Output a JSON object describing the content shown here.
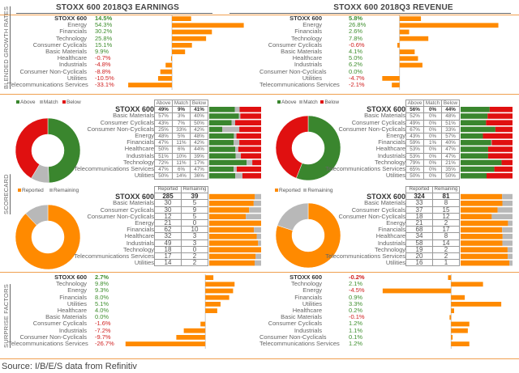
{
  "sections": {
    "growth": "BLENDED GROWTH RATES",
    "scorecard": "SCORECARD",
    "surprise": "SURPRISE FACTORS"
  },
  "source": "Source: I/B/E/S data from Refinitiv",
  "colors": {
    "bar": "#ff8a00",
    "above": "#3a862e",
    "match": "#b8b8b8",
    "below": "#e01010",
    "reported": "#ff8a00",
    "remaining": "#b8b8b8",
    "positive_text": "#3f8f2f",
    "negative_text": "#d02020"
  },
  "legends": {
    "above": "Above",
    "match": "Match",
    "below": "Below",
    "reported": "Reported",
    "remaining": "Remaining"
  },
  "table_headers": {
    "above": "Above",
    "match": "Match",
    "below": "Below",
    "reported": "Reported",
    "remaining": "Remaining"
  },
  "chart_data": [
    {
      "id": "earnings_growth",
      "type": "bar",
      "orientation": "horizontal",
      "title": "STOXX 600 2018Q3 EARNINGS",
      "categories": [
        "STOXX 600",
        "Energy",
        "Financials",
        "Technology",
        "Consumer Cyclicals",
        "Basic Materials",
        "Healthcare",
        "Industrials",
        "Consumer Non-Cyclicals",
        "Utilities",
        "Telecommunications Services"
      ],
      "values": [
        14.5,
        54.3,
        30.2,
        25.8,
        15.1,
        9.9,
        -0.7,
        -4.8,
        -8.8,
        -10.5,
        -33.1
      ],
      "labels": [
        "14.5%",
        "54.3%",
        "30.2%",
        "25.8%",
        "15.1%",
        "9.9%",
        "-0.7%",
        "-4.8%",
        "-8.8%",
        "-10.5%",
        "-33.1%"
      ],
      "xlim": [
        -35,
        57
      ],
      "unit": "%"
    },
    {
      "id": "revenue_growth",
      "type": "bar",
      "orientation": "horizontal",
      "title": "STOXX 600 2018Q3 REVENUE",
      "categories": [
        "STOXX 600",
        "Energy",
        "Financials",
        "Technology",
        "Consumer Cyclicals",
        "Basic Materials",
        "Healthcare",
        "Industrials",
        "Consumer Non-Cyclicals",
        "Utilities",
        "Telecommunications Services"
      ],
      "values": [
        5.8,
        26.8,
        2.6,
        7.8,
        -0.6,
        4.1,
        5.0,
        6.2,
        0.0,
        -4.7,
        -2.1
      ],
      "labels": [
        "5.8%",
        "26.8%",
        "2.6%",
        "7.8%",
        "-0.6%",
        "4.1%",
        "5.0%",
        "6.2%",
        "0.0%",
        "-4.7%",
        "-2.1%"
      ],
      "xlim": [
        -5,
        28
      ],
      "unit": "%"
    },
    {
      "id": "earnings_scorecard_pie",
      "type": "pie",
      "style": "donut",
      "categories": [
        "Above",
        "Match",
        "Below"
      ],
      "values": [
        49,
        9,
        41
      ]
    },
    {
      "id": "earnings_scorecard_table",
      "type": "table",
      "columns": [
        "Above",
        "Match",
        "Below"
      ],
      "rows": [
        {
          "name": "STOXX 600",
          "above": 49,
          "match": 9,
          "below": 41
        },
        {
          "name": "Basic Materials",
          "above": 57,
          "match": 3,
          "below": 40
        },
        {
          "name": "Consumer Cyclicals",
          "above": 43,
          "match": 7,
          "below": 50
        },
        {
          "name": "Consumer Non-Cyclicals",
          "above": 25,
          "match": 33,
          "below": 42
        },
        {
          "name": "Energy",
          "above": 48,
          "match": 5,
          "below": 48
        },
        {
          "name": "Financials",
          "above": 47,
          "match": 11,
          "below": 42
        },
        {
          "name": "Healthcare",
          "above": 50,
          "match": 6,
          "below": 44
        },
        {
          "name": "Industrials",
          "above": 51,
          "match": 10,
          "below": 39
        },
        {
          "name": "Technology",
          "above": 72,
          "match": 11,
          "below": 17
        },
        {
          "name": "Telecommunications Services",
          "above": 47,
          "match": 6,
          "below": 47
        },
        {
          "name": "Utilities",
          "above": 50,
          "match": 14,
          "below": 36
        }
      ],
      "unit": "%"
    },
    {
      "id": "revenue_scorecard_pie",
      "type": "pie",
      "style": "donut",
      "categories": [
        "Above",
        "Match",
        "Below"
      ],
      "values": [
        56,
        0,
        44
      ]
    },
    {
      "id": "revenue_scorecard_table",
      "type": "table",
      "columns": [
        "Above",
        "Match",
        "Below"
      ],
      "rows": [
        {
          "name": "STOXX 600",
          "above": 56,
          "match": 0,
          "below": 44
        },
        {
          "name": "Basic Materials",
          "above": 52,
          "match": 0,
          "below": 48
        },
        {
          "name": "Consumer Cyclicals",
          "above": 49,
          "match": 0,
          "below": 51
        },
        {
          "name": "Consumer Non-Cyclicals",
          "above": 67,
          "match": 0,
          "below": 33
        },
        {
          "name": "Energy",
          "above": 43,
          "match": 0,
          "below": 57
        },
        {
          "name": "Financials",
          "above": 59,
          "match": 1,
          "below": 40
        },
        {
          "name": "Healthcare",
          "above": 53,
          "match": 0,
          "below": 47
        },
        {
          "name": "Industrials",
          "above": 53,
          "match": 0,
          "below": 47
        },
        {
          "name": "Technology",
          "above": 79,
          "match": 0,
          "below": 21
        },
        {
          "name": "Telecommunications Services",
          "above": 65,
          "match": 0,
          "below": 35
        },
        {
          "name": "Utilities",
          "above": 50,
          "match": 0,
          "below": 50
        }
      ],
      "unit": "%"
    },
    {
      "id": "earnings_reported_pie",
      "type": "pie",
      "style": "donut",
      "categories": [
        "Reported",
        "Remaining"
      ],
      "values": [
        285,
        39
      ]
    },
    {
      "id": "earnings_reported_table",
      "type": "table",
      "columns": [
        "Reported",
        "Remaining"
      ],
      "rows": [
        {
          "name": "STOXX 600",
          "reported": 285,
          "remaining": 39
        },
        {
          "name": "Basic Materials",
          "reported": 30,
          "remaining": 5
        },
        {
          "name": "Consumer Cyclicals",
          "reported": 30,
          "remaining": 9
        },
        {
          "name": "Consumer Non-Cyclicals",
          "reported": 12,
          "remaining": 5
        },
        {
          "name": "Energy",
          "reported": 21,
          "remaining": 0
        },
        {
          "name": "Financials",
          "reported": 62,
          "remaining": 10
        },
        {
          "name": "Healthcare",
          "reported": 32,
          "remaining": 3
        },
        {
          "name": "Industrials",
          "reported": 49,
          "remaining": 3
        },
        {
          "name": "Technology",
          "reported": 18,
          "remaining": 0
        },
        {
          "name": "Telecommunications Services",
          "reported": 17,
          "remaining": 2
        },
        {
          "name": "Utilities",
          "reported": 14,
          "remaining": 2
        }
      ]
    },
    {
      "id": "revenue_reported_pie",
      "type": "pie",
      "style": "donut",
      "categories": [
        "Reported",
        "Remaining"
      ],
      "values": [
        324,
        81
      ]
    },
    {
      "id": "revenue_reported_table",
      "type": "table",
      "columns": [
        "Reported",
        "Remaining"
      ],
      "rows": [
        {
          "name": "STOXX 600",
          "reported": 324,
          "remaining": 81
        },
        {
          "name": "Basic Materials",
          "reported": 33,
          "remaining": 8
        },
        {
          "name": "Consumer Cyclicals",
          "reported": 37,
          "remaining": 15
        },
        {
          "name": "Consumer Non-Cyclicals",
          "reported": 18,
          "remaining": 12
        },
        {
          "name": "Energy",
          "reported": 21,
          "remaining": 2
        },
        {
          "name": "Financials",
          "reported": 68,
          "remaining": 17
        },
        {
          "name": "Healthcare",
          "reported": 34,
          "remaining": 8
        },
        {
          "name": "Industrials",
          "reported": 58,
          "remaining": 14
        },
        {
          "name": "Technology",
          "reported": 19,
          "remaining": 2
        },
        {
          "name": "Telecommunications Services",
          "reported": 20,
          "remaining": 2
        },
        {
          "name": "Utilities",
          "reported": 16,
          "remaining": 1
        }
      ]
    },
    {
      "id": "earnings_surprise",
      "type": "bar",
      "orientation": "horizontal",
      "categories": [
        "STOXX 600",
        "Technology",
        "Energy",
        "Financials",
        "Utilities",
        "Healthcare",
        "Basic Materials",
        "Consumer Cyclicals",
        "Industrials",
        "Consumer Non-Cyclicals",
        "Telecommunications Services"
      ],
      "values": [
        2.7,
        9.8,
        9.3,
        8.0,
        5.1,
        4.0,
        0.0,
        -1.6,
        -7.2,
        -9.7,
        -26.7
      ],
      "labels": [
        "2.7%",
        "9.8%",
        "9.3%",
        "8.0%",
        "5.1%",
        "4.0%",
        "0.0%",
        "-1.6%",
        "-7.2%",
        "-9.7%",
        "-26.7%"
      ],
      "xlim": [
        -28,
        10
      ],
      "unit": "%"
    },
    {
      "id": "revenue_surprise",
      "type": "bar",
      "orientation": "horizontal",
      "categories": [
        "STOXX 600",
        "Technology",
        "Energy",
        "Financials",
        "Utilities",
        "Healthcare",
        "Basic Materials",
        "Consumer Cyclicals",
        "Industrials",
        "Consumer Non-Cyclicals",
        "Telecommunications Services"
      ],
      "values": [
        -0.2,
        2.1,
        -4.5,
        0.9,
        3.3,
        0.2,
        -0.1,
        1.2,
        1.1,
        0.1,
        1.2
      ],
      "labels": [
        "-0.2%",
        "2.1%",
        "-4.5%",
        "0.9%",
        "3.3%",
        "0.2%",
        "-0.1%",
        "1.2%",
        "1.1%",
        "0.1%",
        "1.2%"
      ],
      "xlim": [
        -4.6,
        3.4
      ],
      "unit": "%"
    }
  ]
}
